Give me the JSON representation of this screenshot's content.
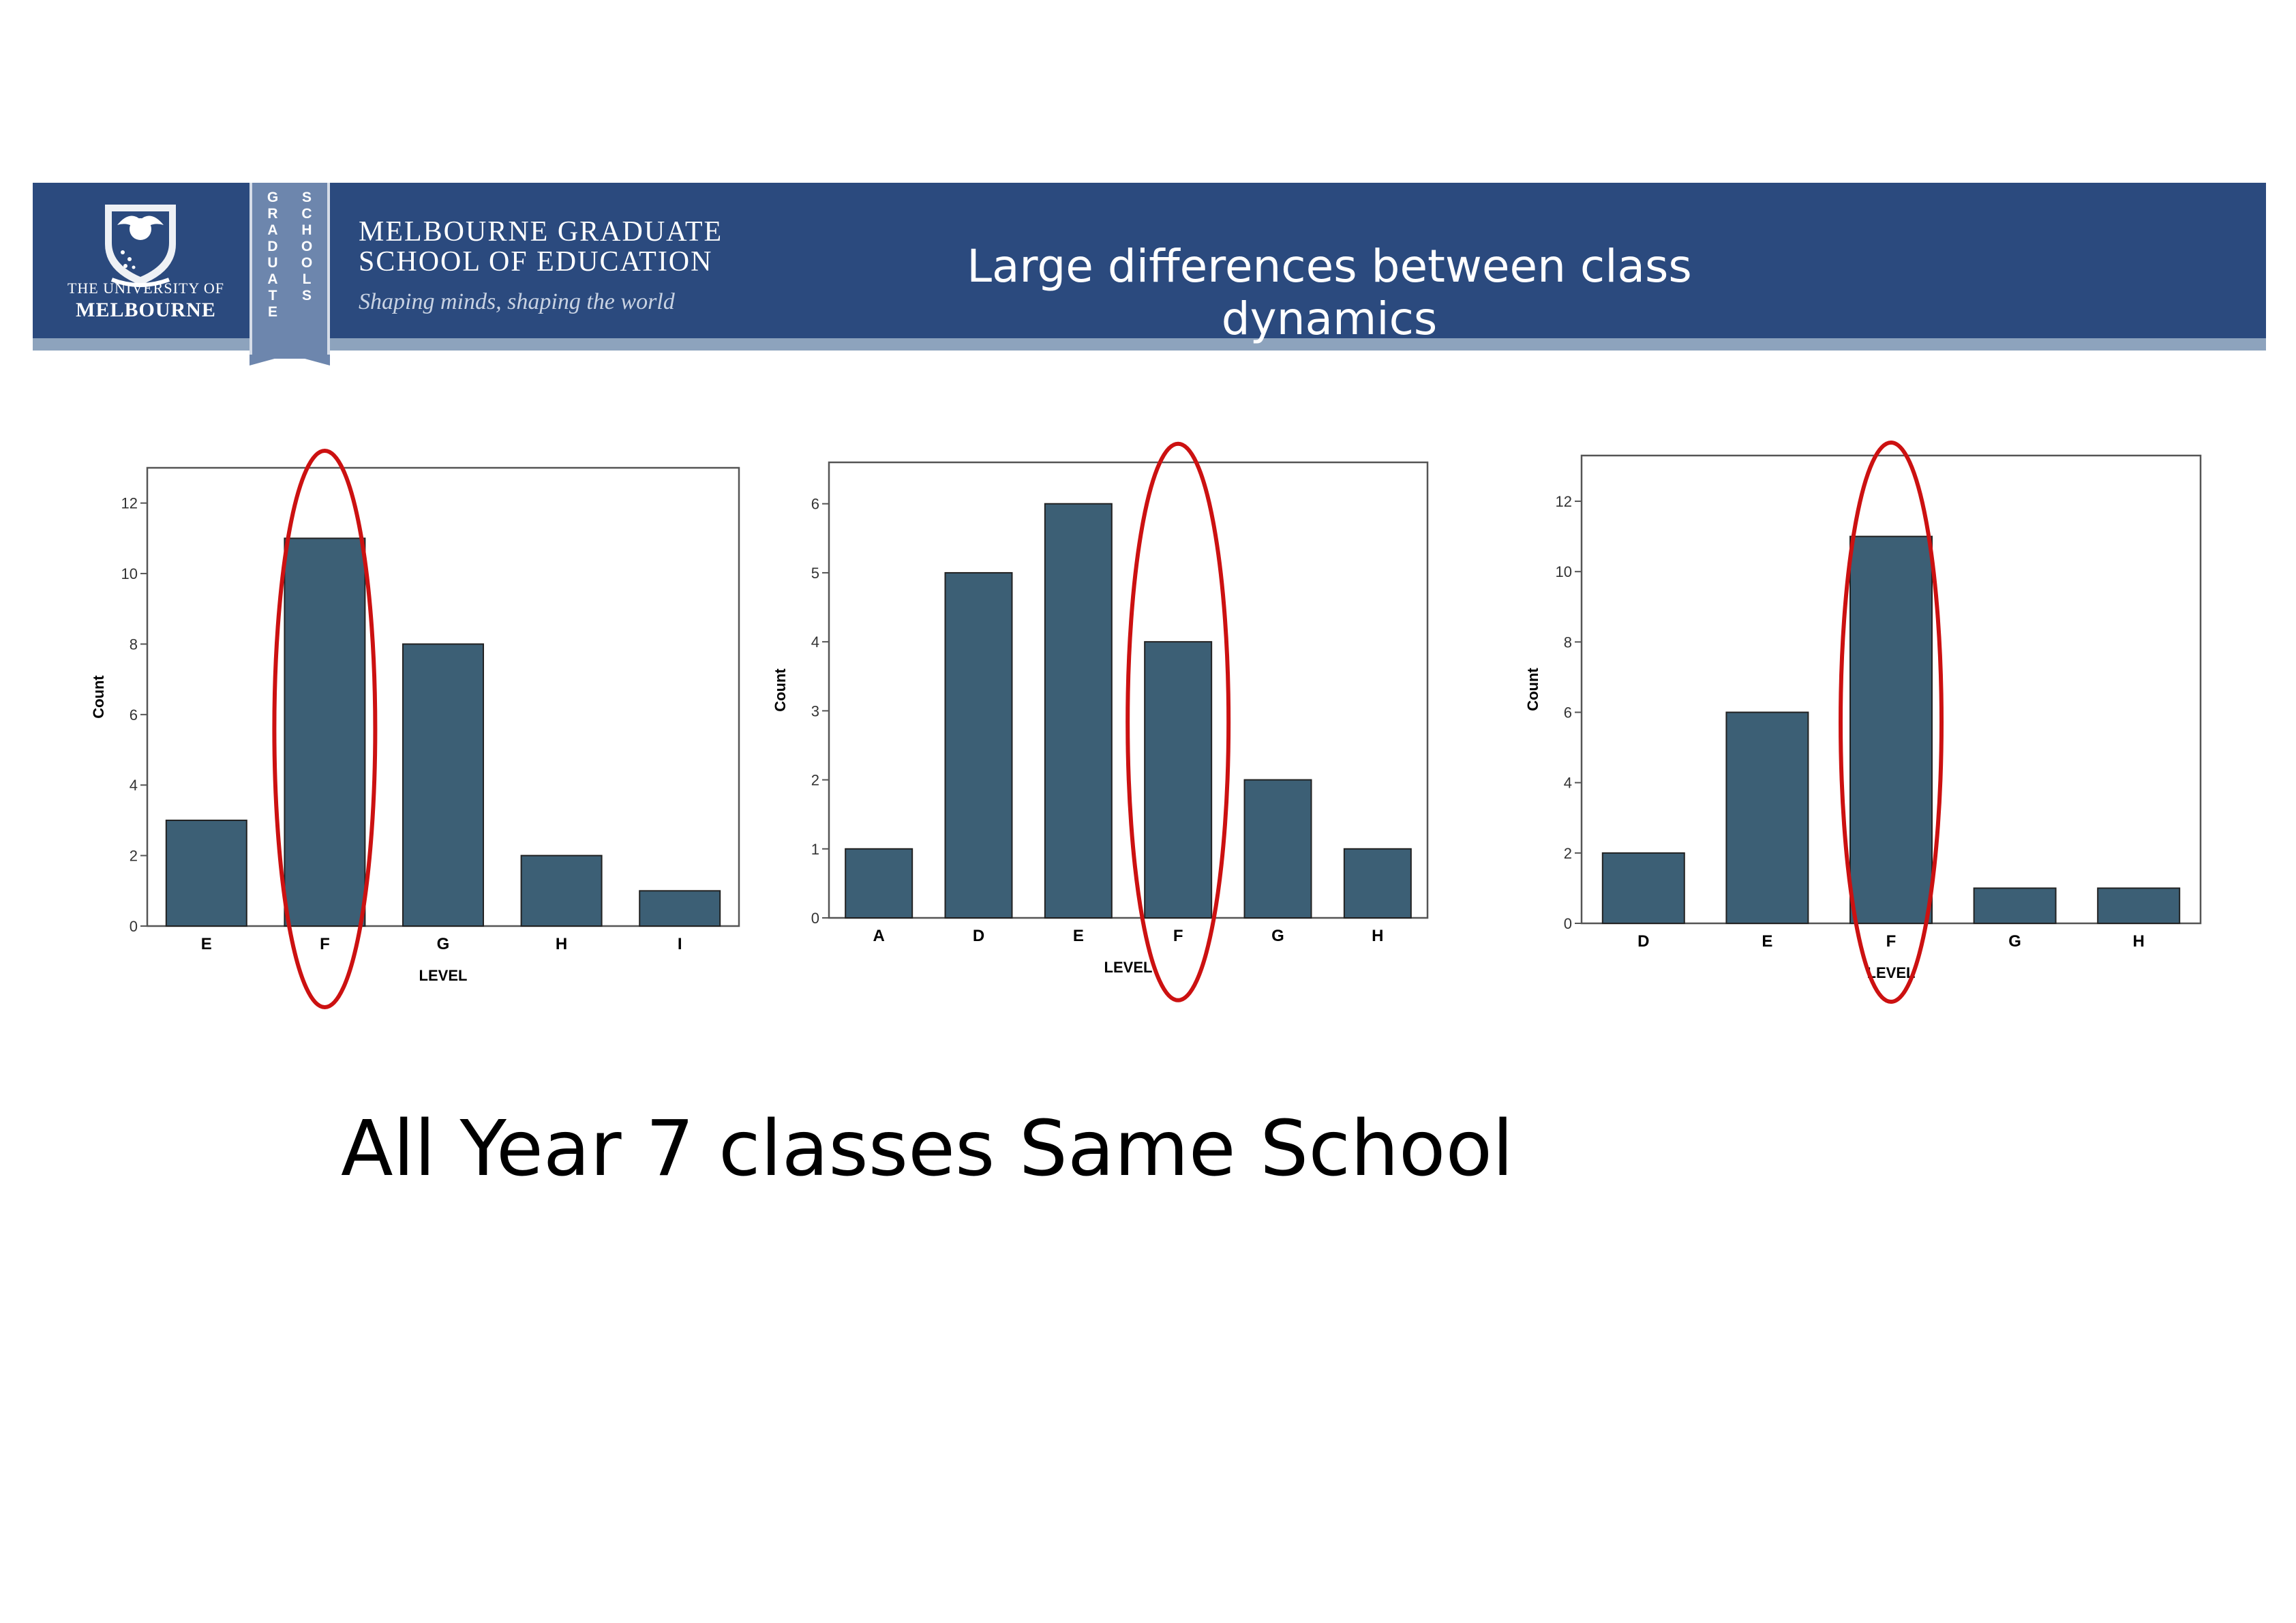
{
  "header": {
    "university_line1": "THE UNIVERSITY OF",
    "university_line2": "MELBOURNE",
    "ribbon_col1": "GRADUATE",
    "ribbon_col2": "SCHOOLS",
    "school_line1": "MELBOURNE GRADUATE",
    "school_line2": "SCHOOL OF EDUCATION",
    "tagline": "Shaping minds, shaping the world",
    "title": "Large differences between class dynamics",
    "colors": {
      "bar": "#2b4a7e",
      "stripe": "#8da3bd"
    }
  },
  "caption": "All Year 7 classes Same School",
  "chart_data": [
    {
      "type": "bar",
      "categories": [
        "E",
        "F",
        "G",
        "H",
        "I"
      ],
      "values": [
        3,
        11,
        8,
        2,
        1
      ],
      "xlabel": "LEVEL",
      "ylabel": "Count",
      "ylim": [
        0,
        13
      ],
      "yticks": [
        0,
        2,
        4,
        6,
        8,
        10,
        12
      ],
      "highlight": "F",
      "bar_color": "#3c5f75",
      "highlight_color": "#cc1111"
    },
    {
      "type": "bar",
      "categories": [
        "A",
        "D",
        "E",
        "F",
        "G",
        "H"
      ],
      "values": [
        1,
        5,
        6,
        4,
        2,
        1
      ],
      "xlabel": "LEVEL",
      "ylabel": "Count",
      "ylim": [
        0,
        6.6
      ],
      "yticks": [
        0,
        1,
        2,
        3,
        4,
        5,
        6
      ],
      "highlight": "F",
      "bar_color": "#3c5f75",
      "highlight_color": "#cc1111"
    },
    {
      "type": "bar",
      "categories": [
        "D",
        "E",
        "F",
        "G",
        "H"
      ],
      "values": [
        2,
        6,
        11,
        1,
        1
      ],
      "xlabel": "LEVEL",
      "ylabel": "Count",
      "ylim": [
        0,
        13.3
      ],
      "yticks": [
        0,
        2,
        4,
        6,
        8,
        10,
        12
      ],
      "highlight": "F",
      "bar_color": "#3c5f75",
      "highlight_color": "#cc1111"
    }
  ]
}
